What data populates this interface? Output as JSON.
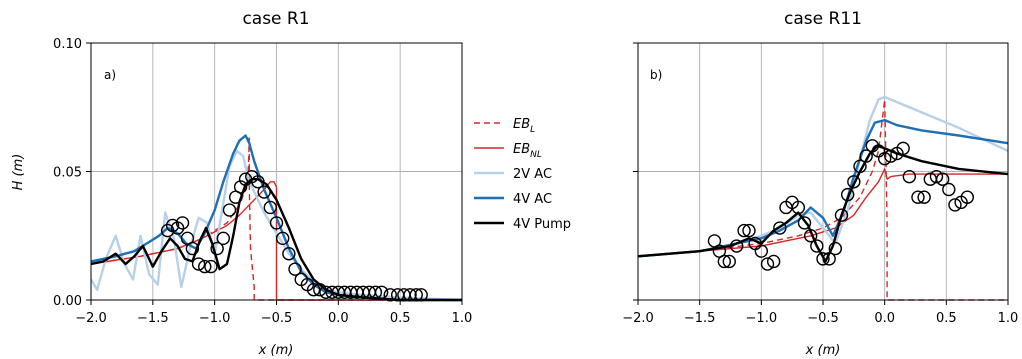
{
  "colors": {
    "eb_l": "#d62728",
    "eb_nl": "#d62728",
    "ac2v": "#b7d0ea",
    "ac4v": "#1f6fb5",
    "pump": "#000000",
    "grid": "#b0b0b0"
  },
  "legend": {
    "items": [
      {
        "key": "eb_l",
        "label": "EB",
        "sub": "L",
        "style": "dashed"
      },
      {
        "key": "eb_nl",
        "label": "EB",
        "sub": "NL",
        "style": "solid-thin"
      },
      {
        "key": "ac2v",
        "label": "2V AC",
        "style": "solid"
      },
      {
        "key": "ac4v",
        "label": "4V AC",
        "style": "solid"
      },
      {
        "key": "pump",
        "label": "4V Pump",
        "style": "solid"
      }
    ]
  },
  "chart_data": [
    {
      "type": "line",
      "title": "case R1",
      "panel_label": "a)",
      "xlabel": "x (m)",
      "ylabel": "H (m)",
      "xlim": [
        -2.0,
        1.0
      ],
      "ylim": [
        0.0,
        0.1
      ],
      "xticks": [
        "−2.0",
        "−1.5",
        "−1.0",
        "−0.5",
        "0.0",
        "0.5",
        "1.0"
      ],
      "xtick_values": [
        -2.0,
        -1.5,
        -1.0,
        -0.5,
        0.0,
        0.5,
        1.0
      ],
      "yticks": [
        "0.00",
        "0.05",
        "0.10"
      ],
      "ytick_values": [
        0.0,
        0.05,
        0.1
      ],
      "grid": true,
      "series": [
        {
          "name": "EB_L",
          "key": "eb_l",
          "dash": true,
          "x": [
            -2.0,
            -1.6,
            -1.3,
            -1.1,
            -0.9,
            -0.8,
            -0.75,
            -0.73,
            -0.72,
            -0.72,
            -0.71,
            -0.68,
            -0.68,
            -0.4,
            1.0
          ],
          "y": [
            0.014,
            0.017,
            0.02,
            0.024,
            0.03,
            0.037,
            0.043,
            0.048,
            0.063,
            0.044,
            0.02,
            0.005,
            0.0,
            0.0,
            0.0
          ]
        },
        {
          "name": "EB_NL",
          "key": "eb_nl",
          "dash": false,
          "x": [
            -2.0,
            -1.6,
            -1.3,
            -1.1,
            -0.9,
            -0.8,
            -0.7,
            -0.6,
            -0.55,
            -0.52,
            -0.5,
            -0.5,
            1.0
          ],
          "y": [
            0.014,
            0.017,
            0.02,
            0.024,
            0.029,
            0.033,
            0.038,
            0.043,
            0.046,
            0.046,
            0.044,
            0.0,
            0.0
          ]
        },
        {
          "name": "2V AC",
          "key": "ac2v",
          "dash": false,
          "x": [
            -2.0,
            -1.95,
            -1.88,
            -1.8,
            -1.73,
            -1.66,
            -1.6,
            -1.53,
            -1.46,
            -1.4,
            -1.33,
            -1.27,
            -1.2,
            -1.13,
            -1.06,
            -1.0,
            -0.94,
            -0.88,
            -0.82,
            -0.77,
            -0.72,
            -0.66,
            -0.6,
            -0.5,
            -0.4,
            -0.3,
            -0.2,
            -0.1,
            0.0,
            0.2,
            0.5,
            1.0
          ],
          "y": [
            0.008,
            0.004,
            0.016,
            0.025,
            0.014,
            0.008,
            0.025,
            0.01,
            0.006,
            0.034,
            0.024,
            0.005,
            0.02,
            0.032,
            0.03,
            0.018,
            0.035,
            0.052,
            0.058,
            0.056,
            0.046,
            0.04,
            0.034,
            0.026,
            0.018,
            0.012,
            0.007,
            0.004,
            0.003,
            0.002,
            0.001,
            0.0
          ]
        },
        {
          "name": "4V AC",
          "key": "ac4v",
          "dash": false,
          "x": [
            -2.0,
            -1.8,
            -1.65,
            -1.55,
            -1.45,
            -1.38,
            -1.3,
            -1.23,
            -1.15,
            -1.08,
            -1.0,
            -0.93,
            -0.85,
            -0.8,
            -0.75,
            -0.72,
            -0.68,
            -0.6,
            -0.5,
            -0.4,
            -0.3,
            -0.2,
            -0.1,
            0.0,
            0.2,
            0.5,
            1.0
          ],
          "y": [
            0.015,
            0.017,
            0.019,
            0.022,
            0.025,
            0.028,
            0.026,
            0.022,
            0.02,
            0.026,
            0.035,
            0.046,
            0.057,
            0.062,
            0.064,
            0.061,
            0.054,
            0.043,
            0.032,
            0.02,
            0.011,
            0.006,
            0.003,
            0.002,
            0.001,
            0.0,
            0.0
          ]
        },
        {
          "name": "4V Pump",
          "key": "pump",
          "dash": false,
          "x": [
            -2.0,
            -1.9,
            -1.8,
            -1.72,
            -1.65,
            -1.58,
            -1.5,
            -1.43,
            -1.36,
            -1.3,
            -1.24,
            -1.18,
            -1.12,
            -1.07,
            -1.02,
            -0.96,
            -0.9,
            -0.85,
            -0.8,
            -0.75,
            -0.7,
            -0.65,
            -0.58,
            -0.5,
            -0.4,
            -0.3,
            -0.2,
            -0.1,
            0.0,
            0.2,
            0.5,
            1.0
          ],
          "y": [
            0.014,
            0.015,
            0.018,
            0.014,
            0.017,
            0.021,
            0.013,
            0.019,
            0.024,
            0.021,
            0.016,
            0.015,
            0.023,
            0.028,
            0.022,
            0.012,
            0.014,
            0.025,
            0.038,
            0.045,
            0.047,
            0.047,
            0.045,
            0.039,
            0.028,
            0.016,
            0.008,
            0.004,
            0.002,
            0.001,
            0.0,
            0.0
          ]
        }
      ],
      "observations": {
        "marker": "circle",
        "x": [
          -1.38,
          -1.34,
          -1.3,
          -1.26,
          -1.22,
          -1.18,
          -1.13,
          -1.08,
          -1.03,
          -0.98,
          -0.93,
          -0.88,
          -0.83,
          -0.79,
          -0.75,
          -0.7,
          -0.65,
          -0.6,
          -0.55,
          -0.5,
          -0.45,
          -0.4,
          -0.35,
          -0.3,
          -0.25,
          -0.2,
          -0.15,
          -0.1,
          -0.05,
          0.0,
          0.05,
          0.1,
          0.15,
          0.2,
          0.25,
          0.3,
          0.35,
          0.42,
          0.48,
          0.53,
          0.58,
          0.63,
          0.67
        ],
        "y": [
          0.027,
          0.029,
          0.028,
          0.03,
          0.024,
          0.02,
          0.014,
          0.013,
          0.013,
          0.02,
          0.024,
          0.035,
          0.04,
          0.044,
          0.047,
          0.048,
          0.046,
          0.042,
          0.036,
          0.03,
          0.024,
          0.018,
          0.012,
          0.008,
          0.006,
          0.004,
          0.004,
          0.003,
          0.003,
          0.003,
          0.003,
          0.003,
          0.003,
          0.003,
          0.003,
          0.003,
          0.003,
          0.002,
          0.002,
          0.002,
          0.002,
          0.002,
          0.002
        ]
      }
    },
    {
      "type": "line",
      "title": "case R11",
      "panel_label": "b)",
      "xlabel": "x (m)",
      "ylabel": "",
      "xlim": [
        -2.0,
        1.0
      ],
      "ylim": [
        0.0,
        0.1
      ],
      "xticks": [
        "−2.0",
        "−1.5",
        "−1.0",
        "−0.5",
        "0.0",
        "0.5",
        "1.0"
      ],
      "xtick_values": [
        -2.0,
        -1.5,
        -1.0,
        -0.5,
        0.0,
        0.5,
        1.0
      ],
      "yticks": [],
      "ytick_values": [
        0.0,
        0.05,
        0.1
      ],
      "grid": true,
      "series": [
        {
          "name": "EB_L",
          "key": "eb_l",
          "dash": true,
          "x": [
            -2.0,
            -1.5,
            -1.0,
            -0.7,
            -0.5,
            -0.35,
            -0.2,
            -0.1,
            -0.05,
            0.0,
            0.02,
            0.02,
            1.0
          ],
          "y": [
            0.017,
            0.019,
            0.022,
            0.025,
            0.028,
            0.032,
            0.04,
            0.05,
            0.058,
            0.078,
            0.03,
            0.0,
            0.0
          ]
        },
        {
          "name": "EB_NL",
          "key": "eb_nl",
          "dash": false,
          "x": [
            -2.0,
            -1.5,
            -1.0,
            -0.6,
            -0.4,
            -0.25,
            -0.15,
            -0.05,
            0.0,
            0.02,
            0.05,
            0.2,
            0.5,
            1.0
          ],
          "y": [
            0.017,
            0.019,
            0.021,
            0.025,
            0.028,
            0.033,
            0.04,
            0.046,
            0.051,
            0.047,
            0.048,
            0.049,
            0.049,
            0.049
          ]
        },
        {
          "name": "2V AC",
          "key": "ac2v",
          "dash": false,
          "x": [
            -2.0,
            -1.5,
            -1.2,
            -1.0,
            -0.85,
            -0.7,
            -0.6,
            -0.5,
            -0.4,
            -0.3,
            -0.2,
            -0.12,
            -0.05,
            0.0,
            0.1,
            0.3,
            0.6,
            1.0
          ],
          "y": [
            0.017,
            0.019,
            0.022,
            0.025,
            0.028,
            0.033,
            0.034,
            0.028,
            0.022,
            0.035,
            0.055,
            0.07,
            0.078,
            0.079,
            0.077,
            0.073,
            0.067,
            0.058
          ]
        },
        {
          "name": "4V AC",
          "key": "ac4v",
          "dash": false,
          "x": [
            -2.0,
            -1.5,
            -1.2,
            -1.0,
            -0.85,
            -0.7,
            -0.6,
            -0.5,
            -0.42,
            -0.33,
            -0.25,
            -0.15,
            -0.08,
            0.0,
            0.1,
            0.3,
            0.6,
            1.0
          ],
          "y": [
            0.017,
            0.019,
            0.022,
            0.024,
            0.027,
            0.031,
            0.036,
            0.032,
            0.025,
            0.035,
            0.048,
            0.062,
            0.069,
            0.07,
            0.068,
            0.066,
            0.064,
            0.061
          ]
        },
        {
          "name": "4V Pump",
          "key": "pump",
          "dash": false,
          "x": [
            -2.0,
            -1.5,
            -1.25,
            -1.1,
            -1.0,
            -0.9,
            -0.8,
            -0.7,
            -0.62,
            -0.55,
            -0.48,
            -0.42,
            -0.35,
            -0.28,
            -0.2,
            -0.12,
            -0.06,
            0.0,
            0.1,
            0.3,
            0.6,
            1.0
          ],
          "y": [
            0.017,
            0.019,
            0.021,
            0.024,
            0.022,
            0.027,
            0.03,
            0.034,
            0.029,
            0.021,
            0.015,
            0.021,
            0.033,
            0.042,
            0.05,
            0.057,
            0.06,
            0.059,
            0.057,
            0.054,
            0.051,
            0.049
          ]
        }
      ],
      "observations": {
        "marker": "circle",
        "x": [
          -1.38,
          -1.34,
          -1.3,
          -1.26,
          -1.2,
          -1.14,
          -1.1,
          -1.05,
          -1.0,
          -0.95,
          -0.9,
          -0.85,
          -0.8,
          -0.75,
          -0.7,
          -0.65,
          -0.6,
          -0.55,
          -0.5,
          -0.45,
          -0.4,
          -0.35,
          -0.3,
          -0.25,
          -0.2,
          -0.15,
          -0.1,
          -0.05,
          0.0,
          0.05,
          0.1,
          0.15,
          0.2,
          0.27,
          0.32,
          0.37,
          0.42,
          0.47,
          0.52,
          0.57,
          0.62,
          0.67
        ],
        "y": [
          0.023,
          0.019,
          0.015,
          0.015,
          0.021,
          0.027,
          0.027,
          0.022,
          0.019,
          0.014,
          0.015,
          0.028,
          0.036,
          0.038,
          0.036,
          0.03,
          0.025,
          0.021,
          0.016,
          0.016,
          0.02,
          0.033,
          0.041,
          0.046,
          0.052,
          0.056,
          0.06,
          0.058,
          0.055,
          0.056,
          0.057,
          0.059,
          0.048,
          0.04,
          0.04,
          0.047,
          0.048,
          0.047,
          0.043,
          0.037,
          0.038,
          0.04
        ]
      }
    }
  ]
}
